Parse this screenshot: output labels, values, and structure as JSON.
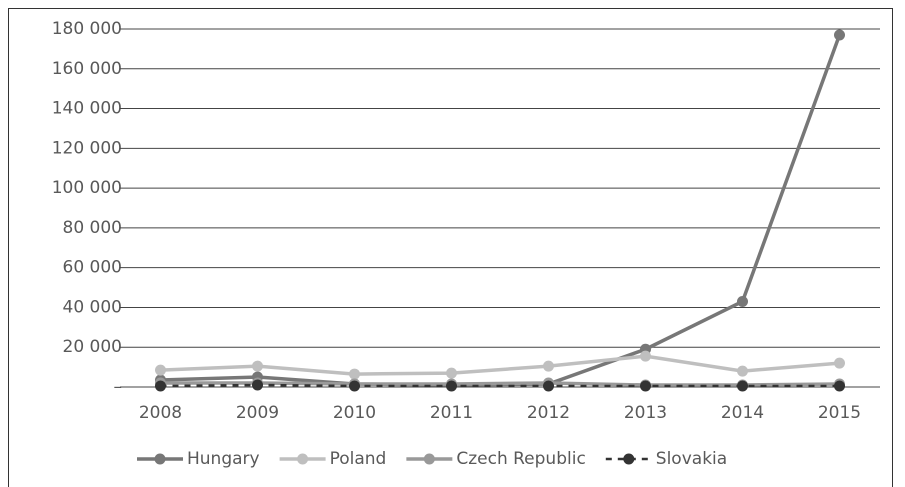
{
  "chart_data": {
    "type": "line",
    "categories": [
      "2008",
      "2009",
      "2010",
      "2011",
      "2012",
      "2013",
      "2014",
      "2015"
    ],
    "series": [
      {
        "name": "Hungary",
        "color": "#777777",
        "values": [
          3500,
          5000,
          1500,
          1000,
          1500,
          19000,
          43000,
          177000
        ]
      },
      {
        "name": "Poland",
        "color": "#bfbfbf",
        "values": [
          8500,
          10500,
          6500,
          7000,
          10500,
          15500,
          8000,
          12000
        ]
      },
      {
        "name": "Czech Republic",
        "color": "#999999",
        "values": [
          2000,
          2000,
          1500,
          1500,
          2000,
          1000,
          1000,
          1500
        ]
      },
      {
        "name": "Slovakia",
        "color": "#333333",
        "dashed": true,
        "values": [
          500,
          1000,
          500,
          500,
          500,
          500,
          500,
          500
        ]
      }
    ],
    "ylim": [
      0,
      180000
    ],
    "yticks": [
      {
        "value": 0,
        "label": "–"
      },
      {
        "value": 20000,
        "label": "20 000"
      },
      {
        "value": 40000,
        "label": "40 000"
      },
      {
        "value": 60000,
        "label": "60 000"
      },
      {
        "value": 80000,
        "label": "80 000"
      },
      {
        "value": 100000,
        "label": "100 000"
      },
      {
        "value": 120000,
        "label": "120 000"
      },
      {
        "value": 140000,
        "label": "140 000"
      },
      {
        "value": 160000,
        "label": "160 000"
      },
      {
        "value": 180000,
        "label": "180 000"
      }
    ],
    "grid": true,
    "legend": "bottom"
  }
}
